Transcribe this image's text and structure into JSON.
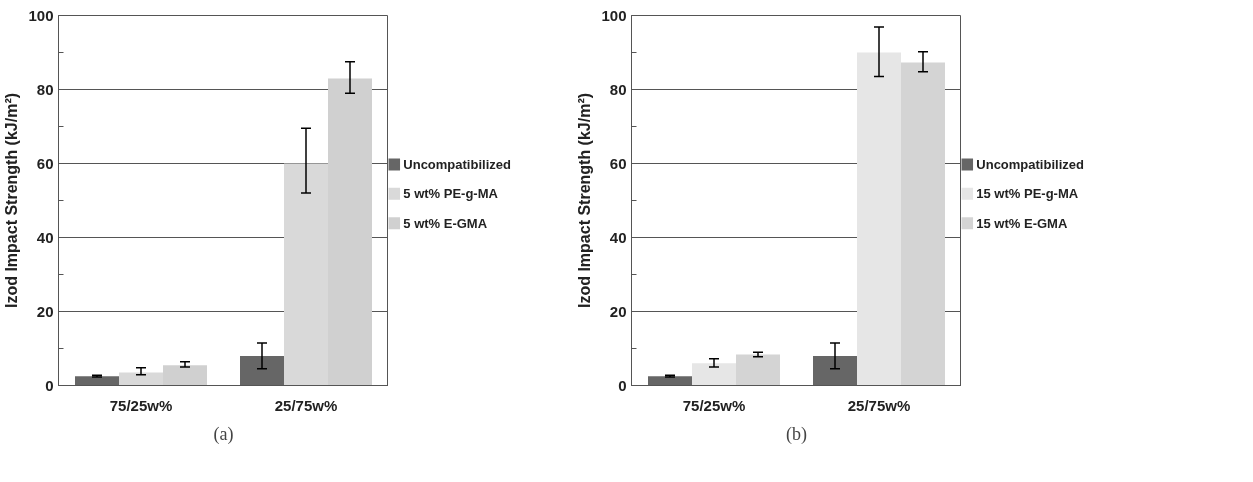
{
  "chart_data": [
    {
      "type": "bar",
      "ylabel": "Izod Impact Strength (kJ/m²)",
      "categories": [
        "75/25w%",
        "25/75w%"
      ],
      "series": [
        {
          "name": "Uncompatibilized",
          "color": "#666666",
          "values": [
            2.5,
            8
          ],
          "errors": [
            [
              2.3,
              2.8
            ],
            [
              4.5,
              11.5
            ]
          ]
        },
        {
          "name": "5 wt% PE-g-MA",
          "color": "#d9d9d9",
          "values": [
            3.5,
            60
          ],
          "errors": [
            [
              2.9,
              4.8
            ],
            [
              52,
              69.5
            ]
          ]
        },
        {
          "name": "5 wt% E-GMA",
          "color": "#d0d0d0",
          "values": [
            5.5,
            83
          ],
          "errors": [
            [
              5,
              6.4
            ],
            [
              79,
              87.5
            ]
          ]
        }
      ],
      "ylim": [
        0,
        100
      ],
      "yticks": [
        0,
        {
          "value": 10,
          "label": null
        },
        20,
        {
          "value": 30,
          "label": null
        },
        40,
        {
          "value": 50,
          "label": null
        },
        60,
        {
          "value": 70,
          "label": null
        },
        80,
        {
          "value": 90,
          "label": null
        },
        100
      ],
      "grid": "y",
      "legend": "right",
      "annotations": [
        "(a)"
      ]
    },
    {
      "type": "bar",
      "ylabel": "Izod Impact Strength (kJ/m²)",
      "categories": [
        "75/25w%",
        "25/75w%"
      ],
      "series": [
        {
          "name": "Uncompatibilized",
          "color": "#666666",
          "values": [
            2.5,
            8
          ],
          "errors": [
            [
              2.3,
              2.8
            ],
            [
              4.5,
              11.5
            ]
          ]
        },
        {
          "name": "15 wt% PE-g-MA",
          "color": "#e6e6e6",
          "values": [
            6,
            90
          ],
          "errors": [
            [
              5,
              7.2
            ],
            [
              83.5,
              96.9
            ]
          ]
        },
        {
          "name": "15 wt% E-GMA",
          "color": "#d4d4d4",
          "values": [
            8.4,
            87.3
          ],
          "errors": [
            [
              7.8,
              9
            ],
            [
              84.8,
              90.2
            ]
          ]
        }
      ],
      "ylim": [
        0,
        100
      ],
      "yticks": [
        0,
        {
          "value": 10,
          "label": null
        },
        20,
        {
          "value": 30,
          "label": null
        },
        40,
        {
          "value": 50,
          "label": null
        },
        60,
        {
          "value": 70,
          "label": null
        },
        80,
        {
          "value": 90,
          "label": null
        },
        100
      ],
      "grid": "y",
      "legend": "right",
      "annotations": [
        "(b)"
      ]
    }
  ]
}
